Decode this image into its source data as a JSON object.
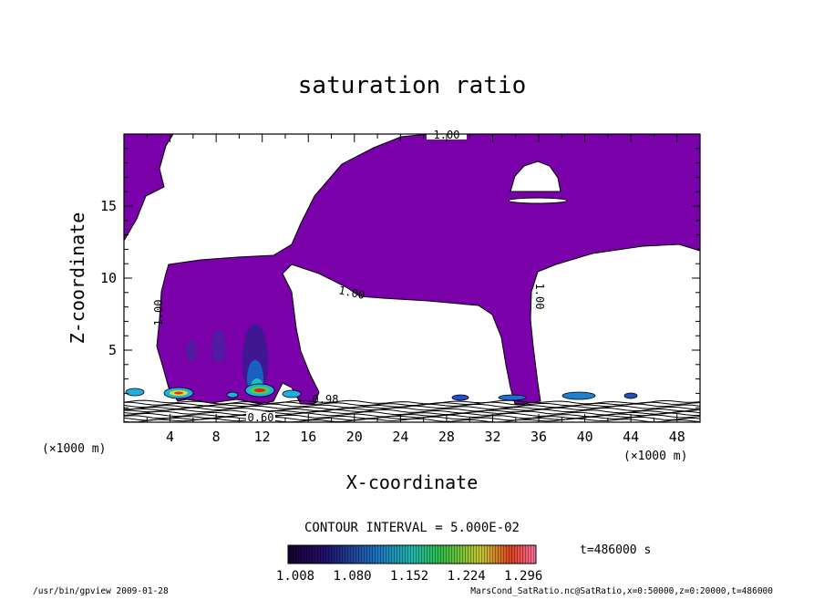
{
  "chart_data": {
    "type": "heatmap",
    "title": "saturation ratio",
    "xlabel": "X-coordinate",
    "ylabel": "Z-coordinate",
    "x_unit": "(×1000 m)",
    "z_unit": "(×1000 m)",
    "xlim": [
      0,
      50
    ],
    "zlim": [
      0,
      20
    ],
    "x_ticks": [
      "4",
      "8",
      "12",
      "16",
      "20",
      "24",
      "28",
      "32",
      "36",
      "40",
      "44",
      "48"
    ],
    "z_ticks": [
      "5",
      "10",
      "15"
    ],
    "contour_interval_text": "CONTOUR INTERVAL = 5.000E-02",
    "time_label": "t=486000 s",
    "colorbar_labels": [
      "1.008",
      "1.080",
      "1.152",
      "1.224",
      "1.296"
    ],
    "colorbar_range": [
      1.008,
      1.296
    ],
    "contour_labels": [
      "1.00",
      "1.00",
      "1.00",
      "1.00",
      "0.60",
      "0.98"
    ],
    "fill_color": "#7a00aa",
    "footer_left": "/usr/bin/gpview  2009-01-28",
    "footer_right": "MarsCond_SatRatio.nc@SatRatio,x=0:50000,z=0:20000,t=486000"
  }
}
